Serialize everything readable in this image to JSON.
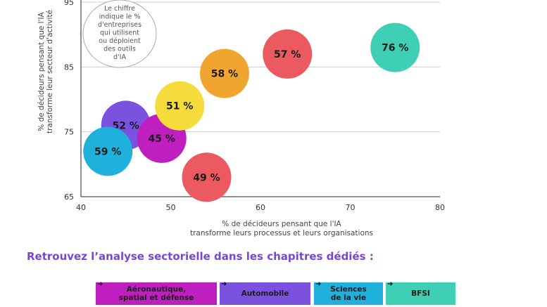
{
  "chart_data": {
    "type": "scatter",
    "title": "",
    "xlabel": "% de décideurs pensant que l'IA\ntransforme leurs processus et leurs organisations",
    "ylabel": "% de décideurs pensant que l'IA\ntransforme leur secteur d'activité",
    "xlim": [
      40,
      80
    ],
    "ylim": [
      65,
      95
    ],
    "xticks": [
      40,
      50,
      60,
      70,
      80
    ],
    "yticks": [
      65,
      75,
      85,
      95
    ],
    "grid": "horizontal",
    "note": "Le chiffre\nindique le %\nd'entreprises\nqui utilisent\nou déploient\ndes outils\nd'IA",
    "points": [
      {
        "x": 45,
        "y": 76,
        "label": "52 %",
        "color": "#7b52e0"
      },
      {
        "x": 43,
        "y": 72,
        "label": "59 %",
        "color": "#1fb0dc"
      },
      {
        "x": 49,
        "y": 74,
        "label": "45 %",
        "color": "#c01fc0"
      },
      {
        "x": 51,
        "y": 79,
        "label": "51 %",
        "color": "#f5dc3b"
      },
      {
        "x": 56,
        "y": 84,
        "label": "58 %",
        "color": "#f0a52f"
      },
      {
        "x": 63,
        "y": 87,
        "label": "57 %",
        "color": "#ea5a60"
      },
      {
        "x": 75,
        "y": 88,
        "label": "76 %",
        "color": "#3ecfb4"
      },
      {
        "x": 54,
        "y": 68,
        "label": "49 %",
        "color": "#ea5a60"
      }
    ]
  },
  "section": {
    "heading": "Retrouvez l’analyse sectorielle dans les chapitres dédiés :"
  },
  "sectors": [
    {
      "label": "Aéronautique,\nspatial et défense",
      "color": "#c01fc0",
      "arrow": "➜"
    },
    {
      "label": "Automobile",
      "color": "#7b52e0",
      "arrow": "➜"
    },
    {
      "label": "Sciences\nde la vie",
      "color": "#1fb0dc",
      "arrow": "➜"
    },
    {
      "label": "BFSI",
      "color": "#3ecfb4",
      "arrow": "➜"
    }
  ]
}
